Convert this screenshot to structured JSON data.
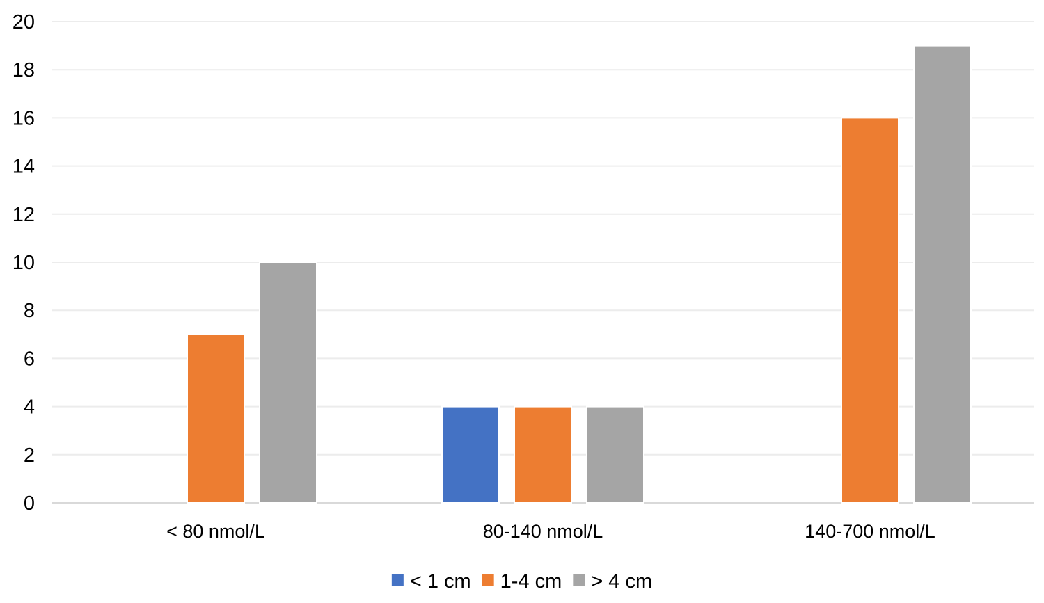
{
  "chart_data": {
    "type": "bar",
    "title": "",
    "xlabel": "",
    "ylabel": "",
    "categories": [
      "< 80 nmol/L",
      "80-140 nmol/L",
      "140-700 nmol/L"
    ],
    "series": [
      {
        "name": "< 1 cm",
        "color": "#4472C4",
        "values": [
          0,
          4,
          0
        ]
      },
      {
        "name": "1-4 cm",
        "color": "#ED7D31",
        "values": [
          7,
          4,
          16
        ]
      },
      {
        "name": "> 4 cm",
        "color": "#A5A5A5",
        "values": [
          10,
          4,
          19
        ]
      }
    ],
    "ylim": [
      0,
      20
    ],
    "yticks": [
      "0",
      "2",
      "4",
      "6",
      "8",
      "10",
      "12",
      "14",
      "16",
      "18",
      "20"
    ],
    "grid": true,
    "legend_position": "bottom"
  }
}
